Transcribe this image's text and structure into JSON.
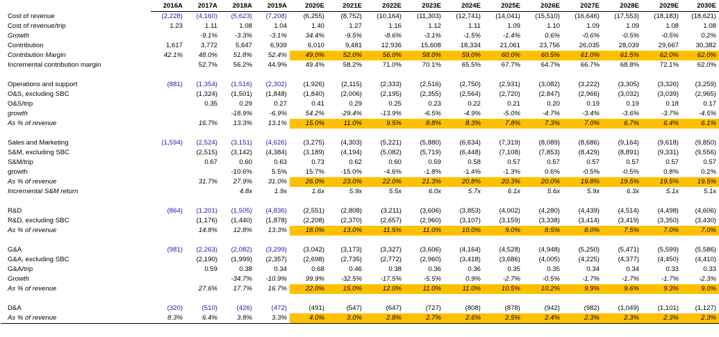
{
  "colors": {
    "highlight": "#ffc000",
    "historical_text": "#1a1aa8"
  },
  "years": [
    "2016A",
    "2017A",
    "2018A",
    "2019A",
    "2020E",
    "2021E",
    "2022E",
    "2023E",
    "2024E",
    "2025E",
    "2026E",
    "2027E",
    "2028E",
    "2029E",
    "2030E"
  ],
  "rows": [
    {
      "label": "Cost of revenue",
      "italic": false,
      "blue": [
        0,
        1,
        2,
        3
      ],
      "hl": false,
      "values": [
        "(2,228)",
        "(4,160)",
        "(5,623)",
        "(7,208)",
        "(6,255)",
        "(8,752)",
        "(10,164)",
        "(11,303)",
        "(12,741)",
        "(14,041)",
        "(15,510)",
        "(16,646)",
        "(17,553)",
        "(18,183)",
        "(18,621)"
      ]
    },
    {
      "label": "Cost of revenue/trip",
      "italic": false,
      "blue": [],
      "hl": false,
      "values": [
        "1.23",
        "1.11",
        "1.08",
        "1.04",
        "1.40",
        "1.27",
        "1.16",
        "1.12",
        "1.11",
        "1.09",
        "1.10",
        "1.09",
        "1.09",
        "1.08",
        "1.08"
      ]
    },
    {
      "label": "Growth",
      "italic": true,
      "blue": [],
      "hl": false,
      "values": [
        "",
        "-9.1%",
        "-3.3%",
        "-3.1%",
        "34.4%",
        "-9.5%",
        "-8.6%",
        "-3.1%",
        "-1.5%",
        "-1.4%",
        "0.6%",
        "-0.6%",
        "-0.5%",
        "-0.5%",
        "0.2%"
      ]
    },
    {
      "label": "Contribution",
      "italic": false,
      "blue": [],
      "hl": false,
      "values": [
        "1,617",
        "3,772",
        "5,647",
        "6,939",
        "6,010",
        "9,481",
        "12,936",
        "15,608",
        "18,334",
        "21,061",
        "23,756",
        "26,035",
        "28,039",
        "29,667",
        "30,382"
      ]
    },
    {
      "label": "Contribution Margin",
      "italic": true,
      "blue": [],
      "hl": true,
      "values": [
        "42.1%",
        "48.0%",
        "51.8%",
        "52.4%",
        "49.0%",
        "52.0%",
        "56.0%",
        "58.0%",
        "59.0%",
        "60.0%",
        "60.5%",
        "61.0%",
        "61.5%",
        "62.0%",
        "62.0%"
      ]
    },
    {
      "label": "Incremental contribution margin",
      "italic": false,
      "blue": [],
      "hl": false,
      "values": [
        "",
        "52.7%",
        "56.2%",
        "44.9%",
        "49.4%",
        "58.2%",
        "71.0%",
        "70.1%",
        "65.5%",
        "67.7%",
        "64.7%",
        "66.7%",
        "68.8%",
        "72.1%",
        "62.0%"
      ]
    },
    {
      "blank": true
    },
    {
      "label": "Operations and support",
      "italic": false,
      "blue": [
        0,
        1,
        2,
        3
      ],
      "hl": false,
      "values": [
        "(881)",
        "(1,354)",
        "(1,516)",
        "(2,302)",
        "(1,926)",
        "(2,115)",
        "(2,333)",
        "(2,516)",
        "(2,750)",
        "(2,931)",
        "(3,082)",
        "(3,222)",
        "(3,305)",
        "(3,326)",
        "(3,259)"
      ]
    },
    {
      "label": "O&S, excluding SBC",
      "italic": false,
      "blue": [],
      "hl": false,
      "values": [
        "",
        "(1,324)",
        "(1,501)",
        "(1,848)",
        "(1,840)",
        "(2,006)",
        "(2,195)",
        "(2,355)",
        "(2,564)",
        "(2,720)",
        "(2,847)",
        "(2,966)",
        "(3,032)",
        "(3,039)",
        "(2,965)"
      ]
    },
    {
      "label": "O&S/trip",
      "italic": false,
      "blue": [],
      "hl": false,
      "values": [
        "",
        "0.35",
        "0.29",
        "0.27",
        "0.41",
        "0.29",
        "0.25",
        "0.23",
        "0.22",
        "0.21",
        "0.20",
        "0.19",
        "0.19",
        "0.18",
        "0.17"
      ]
    },
    {
      "label": "growth",
      "italic": true,
      "blue": [],
      "hl": false,
      "values": [
        "",
        "",
        "-18.9%",
        "-6.9%",
        "54.2%",
        "-29.4%",
        "-13.9%",
        "-6.5%",
        "-4.9%",
        "-5.0%",
        "-4.7%",
        "-3.4%",
        "-3.6%",
        "-3.7%",
        "-4.5%"
      ]
    },
    {
      "label": "As % of revenue",
      "italic": true,
      "blue": [],
      "hl": true,
      "values": [
        "",
        "16.7%",
        "13.3%",
        "13.1%",
        "15.0%",
        "11.0%",
        "9.5%",
        "8.8%",
        "8.3%",
        "7.8%",
        "7.3%",
        "7.0%",
        "6.7%",
        "6.4%",
        "6.1%"
      ]
    },
    {
      "blank": true
    },
    {
      "label": "Sales and Marketing",
      "italic": false,
      "blue": [
        0,
        1,
        2,
        3
      ],
      "hl": false,
      "values": [
        "(1,594)",
        "(2,524)",
        "(3,151)",
        "(4,626)",
        "(3,275)",
        "(4,303)",
        "(5,221)",
        "(5,880)",
        "(6,634)",
        "(7,319)",
        "(8,089)",
        "(8,686)",
        "(9,164)",
        "(9,618)",
        "(9,850)"
      ]
    },
    {
      "label": "S&M, excluding SBC",
      "italic": false,
      "blue": [],
      "hl": false,
      "values": [
        "",
        "(2,515)",
        "(3,142)",
        "(4,384)",
        "(3,189)",
        "(4,194)",
        "(5,082)",
        "(5,719)",
        "(6,448)",
        "(7,108)",
        "(7,853)",
        "(8,429)",
        "(8,891)",
        "(9,331)",
        "(9,556)"
      ]
    },
    {
      "label": "S&M/trip",
      "italic": false,
      "blue": [],
      "hl": false,
      "values": [
        "",
        "0.67",
        "0.60",
        "0.63",
        "0.73",
        "0.62",
        "0.60",
        "0.59",
        "0.58",
        "0.57",
        "0.57",
        "0.57",
        "0.57",
        "0.57",
        "0.57"
      ]
    },
    {
      "label": "growth",
      "italic": false,
      "blue": [],
      "hl": false,
      "values": [
        "",
        "",
        "-10.6%",
        "5.5%",
        "15.7%",
        "-15.0%",
        "-4.6%",
        "-1.8%",
        "-1.4%",
        "-1.3%",
        "0.6%",
        "-0.5%",
        "-0.5%",
        "0.8%",
        "0.2%"
      ]
    },
    {
      "label": "As % of revenue",
      "italic": true,
      "blue": [],
      "hl": true,
      "values": [
        "",
        "31.7%",
        "27.9%",
        "31.0%",
        "26.0%",
        "23.0%",
        "22.0%",
        "21.3%",
        "20.8%",
        "20.3%",
        "20.0%",
        "19.8%",
        "19.5%",
        "19.5%",
        "19.5%"
      ]
    },
    {
      "label": "Incremental S&M return",
      "italic": true,
      "blue": [],
      "hl": false,
      "values": [
        "",
        "",
        "4.8x",
        "1.9x",
        "1.6x",
        "5.9x",
        "5.5x",
        "6.0x",
        "5.7x",
        "6.1x",
        "5.6x",
        "5.9x",
        "6.3x",
        "5.1x",
        "5.1x"
      ]
    },
    {
      "blank": true
    },
    {
      "label": "R&D",
      "italic": false,
      "blue": [
        0,
        1,
        2,
        3
      ],
      "hl": false,
      "values": [
        "(864)",
        "(1,201)",
        "(1,505)",
        "(4,836)",
        "(2,551)",
        "(2,808)",
        "(3,211)",
        "(3,606)",
        "(3,853)",
        "(4,002)",
        "(4,280)",
        "(4,439)",
        "(4,514)",
        "(4,498)",
        "(4,606)"
      ]
    },
    {
      "label": "R&D, excluding SBC",
      "italic": false,
      "blue": [],
      "hl": false,
      "values": [
        "",
        "(1,176)",
        "(1,440)",
        "(1,878)",
        "(2,208)",
        "(2,370)",
        "(2,657)",
        "(2,960)",
        "(3,107)",
        "(3,159)",
        "(3,338)",
        "(3,414)",
        "(3,419)",
        "(3,350)",
        "(3,430)"
      ]
    },
    {
      "label": "As % of revenue",
      "italic": true,
      "blue": [],
      "hl": true,
      "values": [
        "",
        "14.8%",
        "12.8%",
        "13.3%",
        "18.0%",
        "13.0%",
        "11.5%",
        "11.0%",
        "10.0%",
        "9.0%",
        "8.5%",
        "8.0%",
        "7.5%",
        "7.0%",
        "7.0%"
      ]
    },
    {
      "blank": true
    },
    {
      "label": "G&A",
      "italic": false,
      "blue": [
        0,
        1,
        2,
        3
      ],
      "hl": false,
      "values": [
        "(981)",
        "(2,263)",
        "(2,082)",
        "(3,299)",
        "(3,042)",
        "(3,173)",
        "(3,327)",
        "(3,606)",
        "(4,164)",
        "(4,528)",
        "(4,948)",
        "(5,250)",
        "(5,471)",
        "(5,599)",
        "(5,586)"
      ]
    },
    {
      "label": "G&A, excluding SBC",
      "italic": false,
      "blue": [],
      "hl": false,
      "values": [
        "",
        "(2,190)",
        "(1,999)",
        "(2,357)",
        "(2,698)",
        "(2,735)",
        "(2,772)",
        "(2,960)",
        "(3,418)",
        "(3,686)",
        "(4,005)",
        "(4,225)",
        "(4,377)",
        "(4,450)",
        "(4,410)"
      ]
    },
    {
      "label": "G&A/trip",
      "italic": false,
      "blue": [],
      "hl": false,
      "values": [
        "",
        "0.59",
        "0.38",
        "0.34",
        "0.68",
        "0.46",
        "0.38",
        "0.36",
        "0.36",
        "0.35",
        "0.35",
        "0.34",
        "0.34",
        "0.33",
        "0.33"
      ]
    },
    {
      "label": "Growth",
      "italic": true,
      "blue": [],
      "hl": false,
      "values": [
        "",
        "",
        "-34.7%",
        "-10.9%",
        "99.9%",
        "-32.5%",
        "-17.5%",
        "-5.5%",
        "0.9%",
        "-2.7%",
        "-0.5%",
        "-1.7%",
        "-1.7%",
        "-1.7%",
        "-2.3%"
      ]
    },
    {
      "label": "As % of revenue",
      "italic": true,
      "blue": [],
      "hl": true,
      "values": [
        "",
        "27.6%",
        "17.7%",
        "16.7%",
        "22.0%",
        "15.0%",
        "12.0%",
        "11.0%",
        "11.0%",
        "10.5%",
        "10.2%",
        "9.9%",
        "9.6%",
        "9.3%",
        "9.0%"
      ]
    },
    {
      "blank": true
    },
    {
      "label": "D&A",
      "italic": false,
      "blue": [
        0,
        1,
        2,
        3
      ],
      "hl": false,
      "values": [
        "(320)",
        "(510)",
        "(426)",
        "(472)",
        "(491)",
        "(547)",
        "(647)",
        "(727)",
        "(808)",
        "(878)",
        "(942)",
        "(982)",
        "(1,049)",
        "(1,101)",
        "(1,127)"
      ]
    },
    {
      "label": "As % of revenue",
      "italic": true,
      "blue": [],
      "hl": true,
      "values": [
        "8.3%",
        "6.4%",
        "3.8%",
        "3.3%",
        "4.0%",
        "3.0%",
        "2.8%",
        "2.7%",
        "2.6%",
        "2.5%",
        "2.4%",
        "2.3%",
        "2.3%",
        "2.3%",
        "2.3%"
      ]
    }
  ]
}
